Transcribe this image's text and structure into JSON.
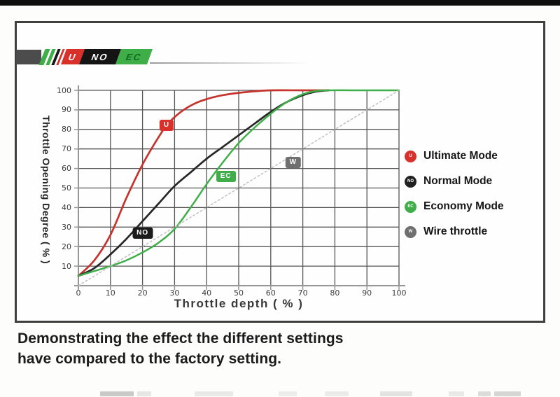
{
  "logo": {
    "segments": [
      {
        "label": "U",
        "bg": "#d8302a",
        "fg": "#ffffff"
      },
      {
        "label": "NO",
        "bg": "#141414",
        "fg": "#ffffff"
      },
      {
        "label": "EC",
        "bg": "#3fae49",
        "fg": "#0e6b1e"
      }
    ]
  },
  "chart_data": {
    "type": "line",
    "xlabel": "Throttle depth ( % )",
    "ylabel": "Throttle Opening Degree ( % )",
    "xlim": [
      0,
      100
    ],
    "ylim": [
      0,
      100
    ],
    "x_ticks": [
      0,
      10,
      20,
      30,
      40,
      50,
      60,
      70,
      80,
      90,
      100
    ],
    "y_ticks": [
      10,
      20,
      30,
      40,
      50,
      60,
      70,
      80,
      90,
      100
    ],
    "grid": true,
    "legend_position": "right",
    "series": [
      {
        "name": "Ultimate Mode",
        "color": "#c4332c",
        "style": "solid",
        "width": 2.7,
        "points": [
          [
            0,
            5
          ],
          [
            5,
            13
          ],
          [
            10,
            26
          ],
          [
            15,
            45
          ],
          [
            20,
            62
          ],
          [
            25,
            76
          ],
          [
            28,
            83
          ],
          [
            32,
            89
          ],
          [
            36,
            93
          ],
          [
            40,
            95.5
          ],
          [
            45,
            97.5
          ],
          [
            50,
            98.7
          ],
          [
            55,
            99.5
          ],
          [
            60,
            100
          ],
          [
            70,
            100
          ],
          [
            78,
            100
          ]
        ]
      },
      {
        "name": "Normal Mode",
        "color": "#272727",
        "style": "solid",
        "width": 2.7,
        "points": [
          [
            0,
            5
          ],
          [
            5,
            9
          ],
          [
            10,
            16
          ],
          [
            15,
            24
          ],
          [
            20,
            33
          ],
          [
            25,
            42
          ],
          [
            30,
            51
          ],
          [
            35,
            58
          ],
          [
            40,
            65
          ],
          [
            45,
            71
          ],
          [
            50,
            77
          ],
          [
            55,
            83
          ],
          [
            60,
            89
          ],
          [
            65,
            94
          ],
          [
            70,
            97.5
          ],
          [
            74,
            99.3
          ],
          [
            78,
            100
          ]
        ]
      },
      {
        "name": "Economy Mode",
        "color": "#3fae49",
        "style": "solid",
        "width": 2.5,
        "points": [
          [
            0,
            5
          ],
          [
            5,
            7.5
          ],
          [
            10,
            10
          ],
          [
            15,
            13
          ],
          [
            20,
            17
          ],
          [
            25,
            22
          ],
          [
            30,
            29
          ],
          [
            35,
            40
          ],
          [
            40,
            52
          ],
          [
            45,
            63
          ],
          [
            50,
            73
          ],
          [
            55,
            81
          ],
          [
            60,
            88
          ],
          [
            65,
            94
          ],
          [
            70,
            98
          ],
          [
            74,
            99.6
          ],
          [
            78,
            100
          ],
          [
            90,
            100
          ],
          [
            100,
            100
          ]
        ]
      },
      {
        "name": "Wire throttle",
        "color": "#bfbfbf",
        "style": "dotted",
        "width": 1.5,
        "points": [
          [
            0,
            0
          ],
          [
            100,
            100
          ]
        ]
      }
    ],
    "curve_labels": [
      {
        "text": "U",
        "x": 27.5,
        "y": 82,
        "color": "#d8302a"
      },
      {
        "text": "NO",
        "x": 20,
        "y": 27,
        "color": "#1b1b1b"
      },
      {
        "text": "EC",
        "x": 46,
        "y": 56,
        "color": "#3fae49"
      },
      {
        "text": "W",
        "x": 67,
        "y": 63,
        "color": "#6f6f6f"
      }
    ]
  },
  "legend": {
    "items": [
      {
        "symbol": "U",
        "label": "Ultimate Mode",
        "color": "#d8302a"
      },
      {
        "symbol": "NO",
        "label": "Normal Mode",
        "color": "#1f1f1f"
      },
      {
        "symbol": "EC",
        "label": "Economy Mode",
        "color": "#3fae49"
      },
      {
        "symbol": "W",
        "label": "Wire throttle",
        "color": "#6f6f6f"
      }
    ]
  },
  "caption": {
    "line1": "Demonstrating the effect the different settings",
    "line2": "have compared to the factory setting."
  },
  "colors": {
    "brand_red": "#d8302a",
    "brand_green": "#3fae49",
    "brand_black": "#141414",
    "grid": "#555555",
    "axis": "#969696"
  }
}
